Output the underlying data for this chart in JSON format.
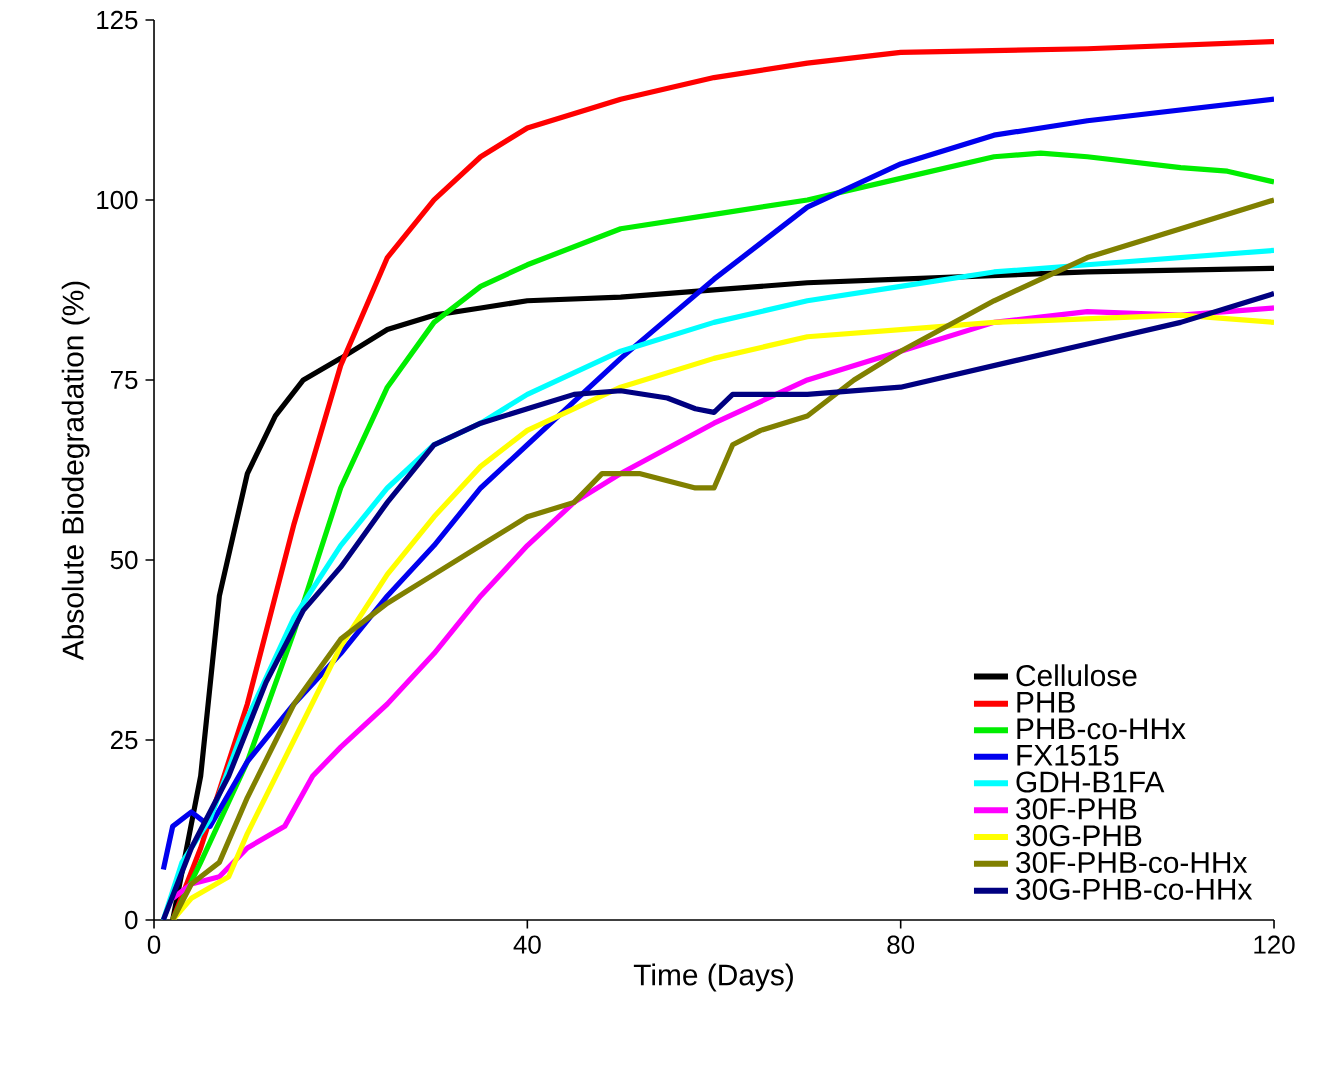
{
  "chart_data": {
    "type": "line",
    "xlabel": "Time (Days)",
    "ylabel": "Absolute Biodegradation (%)",
    "xlim": [
      0,
      120
    ],
    "ylim": [
      0,
      125
    ],
    "xticks": [
      0,
      40,
      80,
      120
    ],
    "yticks": [
      0,
      25,
      50,
      75,
      100,
      125
    ],
    "grid": false,
    "legend": "bottom right",
    "marker": "none",
    "line_style": "solid",
    "series": [
      {
        "name": "Cellulose",
        "color": "#000000",
        "x": [
          2,
          5,
          7,
          10,
          13,
          16,
          20,
          25,
          30,
          35,
          40,
          50,
          60,
          70,
          80,
          90,
          100,
          120
        ],
        "values": [
          0,
          20,
          45,
          62,
          70,
          75,
          78,
          82,
          84,
          85,
          86,
          86.5,
          87.5,
          88.5,
          89,
          89.5,
          90,
          90.5
        ]
      },
      {
        "name": "PHB",
        "color": "#ff0000",
        "x": [
          2,
          5,
          10,
          15,
          20,
          25,
          30,
          35,
          40,
          50,
          60,
          70,
          80,
          100,
          120
        ],
        "values": [
          0,
          10,
          30,
          55,
          77,
          92,
          100,
          106,
          110,
          114,
          117,
          119,
          120.5,
          121,
          122
        ]
      },
      {
        "name": "PHB-co-HHx",
        "color": "#00ee00",
        "x": [
          2,
          5,
          10,
          15,
          20,
          25,
          30,
          35,
          40,
          50,
          60,
          70,
          80,
          90,
          95,
          100,
          110,
          115,
          120
        ],
        "values": [
          0,
          8,
          22,
          40,
          60,
          74,
          83,
          88,
          91,
          96,
          98,
          100,
          103,
          106,
          106.5,
          106,
          104.5,
          104,
          102.5
        ]
      },
      {
        "name": "FX1515",
        "color": "#0000ee",
        "x": [
          1,
          2,
          4,
          6,
          10,
          15,
          20,
          25,
          30,
          35,
          40,
          50,
          60,
          70,
          80,
          90,
          100,
          110,
          120
        ],
        "values": [
          7,
          13,
          15,
          13,
          22,
          30,
          37,
          45,
          52,
          60,
          66,
          78,
          89,
          99,
          105,
          109,
          111,
          112.5,
          114
        ]
      },
      {
        "name": "GDH-B1FA",
        "color": "#00ffff",
        "x": [
          1,
          3,
          6,
          10,
          15,
          20,
          25,
          30,
          35,
          40,
          50,
          60,
          70,
          80,
          90,
          100,
          120
        ],
        "values": [
          0,
          8,
          14,
          28,
          42,
          52,
          60,
          66,
          69,
          73,
          79,
          83,
          86,
          88,
          90,
          91,
          93
        ]
      },
      {
        "name": "30F-PHB",
        "color": "#ff00ff",
        "x": [
          2,
          4,
          7,
          10,
          14,
          17,
          20,
          25,
          30,
          35,
          40,
          45,
          50,
          60,
          70,
          80,
          90,
          100,
          110,
          120
        ],
        "values": [
          3,
          5,
          6,
          10,
          13,
          20,
          24,
          30,
          37,
          45,
          52,
          58,
          62,
          69,
          75,
          79,
          83,
          84.5,
          84,
          85
        ]
      },
      {
        "name": "30G-PHB",
        "color": "#ffff00",
        "x": [
          2,
          4,
          8,
          10,
          15,
          20,
          25,
          30,
          35,
          40,
          50,
          60,
          70,
          80,
          90,
          100,
          110,
          120
        ],
        "values": [
          0,
          3,
          6,
          12,
          25,
          38,
          48,
          56,
          63,
          68,
          74,
          78,
          81,
          82,
          83,
          83.5,
          84,
          83
        ]
      },
      {
        "name": "30F-PHB-co-HHx",
        "color": "#808000",
        "x": [
          2,
          4,
          7,
          10,
          15,
          20,
          25,
          30,
          35,
          40,
          45,
          48,
          52,
          55,
          58,
          60,
          62,
          65,
          70,
          75,
          80,
          90,
          100,
          110,
          120
        ],
        "values": [
          0,
          5,
          8,
          17,
          30,
          39,
          44,
          48,
          52,
          56,
          58,
          62,
          62,
          61,
          60,
          60,
          66,
          68,
          70,
          75,
          79,
          86,
          92,
          96,
          100
        ]
      },
      {
        "name": "30G-PHB-co-HHx",
        "color": "#000080",
        "x": [
          1,
          4,
          8,
          12,
          16,
          20,
          25,
          30,
          35,
          40,
          45,
          50,
          55,
          58,
          60,
          62,
          70,
          80,
          90,
          100,
          110,
          115,
          120
        ],
        "values": [
          0,
          10,
          20,
          33,
          43,
          49,
          58,
          66,
          69,
          71,
          73,
          73.5,
          72.5,
          71,
          70.5,
          73,
          73,
          74,
          77,
          80,
          83,
          85,
          87
        ]
      }
    ]
  }
}
